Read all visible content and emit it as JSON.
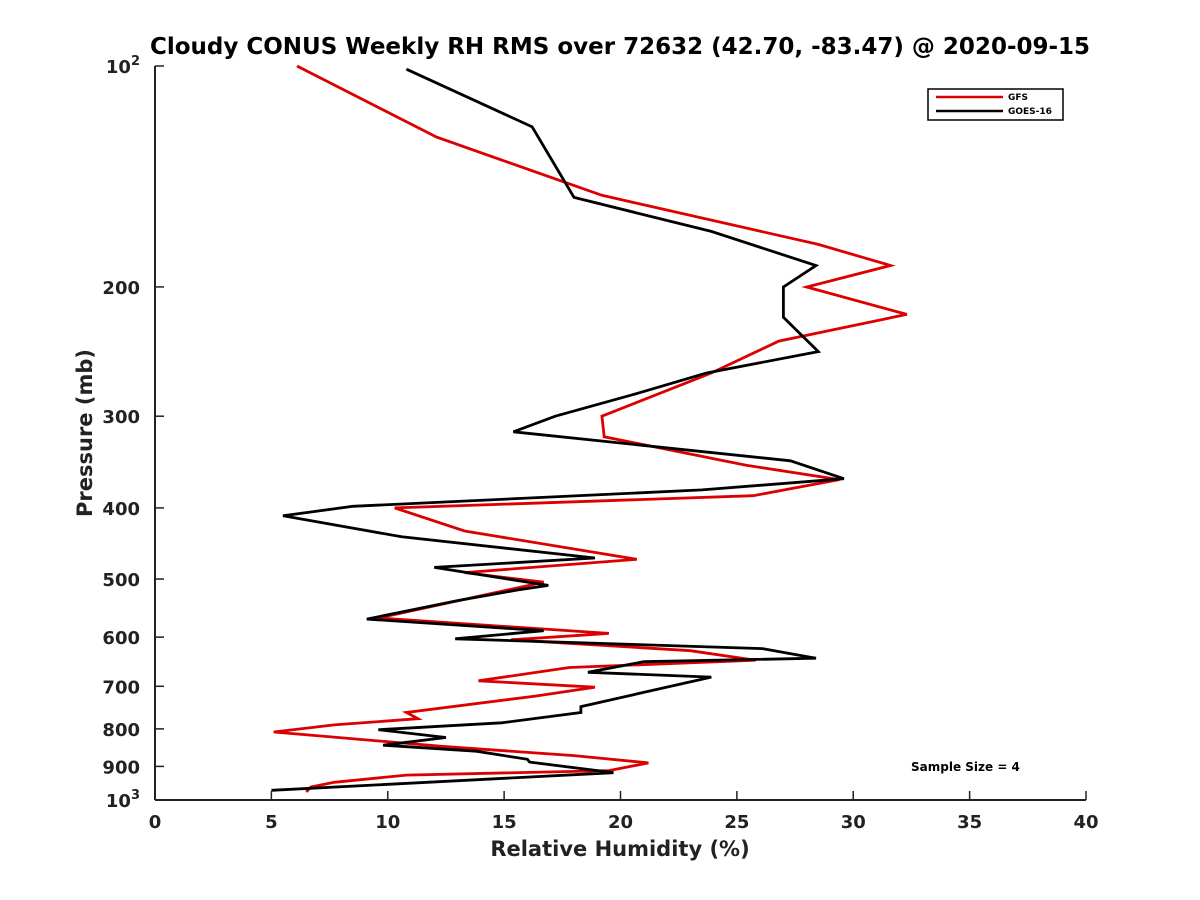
{
  "chart_data": {
    "type": "line",
    "title": "Cloudy CONUS Weekly RH RMS over 72632 (42.70, -83.47) @ 2020-09-15",
    "xlabel": "Relative Humidity (%)",
    "ylabel": "Pressure (mb)",
    "xlim": [
      0,
      40
    ],
    "ylim": [
      100,
      1000
    ],
    "y_scale": "log",
    "y_reversed": true,
    "x_ticks": [
      0,
      5,
      10,
      15,
      20,
      25,
      30,
      35,
      40
    ],
    "y_ticks": [
      {
        "value": 100,
        "base": "10",
        "exp": "2"
      },
      {
        "value": 200,
        "label": "200"
      },
      {
        "value": 300,
        "label": "300"
      },
      {
        "value": 400,
        "label": "400"
      },
      {
        "value": 500,
        "label": "500"
      },
      {
        "value": 600,
        "label": "600"
      },
      {
        "value": 700,
        "label": "700"
      },
      {
        "value": 800,
        "label": "800"
      },
      {
        "value": 900,
        "label": "900"
      },
      {
        "value": 1000,
        "base": "10",
        "exp": "3"
      }
    ],
    "grid": false,
    "legend_position": "top-right",
    "annotation": "Sample Size = 4",
    "series": [
      {
        "name": "GFS",
        "color": "#dd0000",
        "points": [
          [
            6.1,
            100
          ],
          [
            12.1,
            125
          ],
          [
            19.2,
            150
          ],
          [
            28.5,
            175
          ],
          [
            31.6,
            187
          ],
          [
            28.0,
            200
          ],
          [
            32.3,
            218
          ],
          [
            26.8,
            237
          ],
          [
            23.9,
            262
          ],
          [
            19.2,
            300
          ],
          [
            19.3,
            320
          ],
          [
            25.4,
            350
          ],
          [
            29.4,
            366
          ],
          [
            25.7,
            385
          ],
          [
            10.3,
            400
          ],
          [
            13.3,
            430
          ],
          [
            20.7,
            470
          ],
          [
            13.3,
            490
          ],
          [
            16.7,
            505
          ],
          [
            9.6,
            565
          ],
          [
            19.5,
            593
          ],
          [
            15.3,
            605
          ],
          [
            23.0,
            626
          ],
          [
            25.8,
            645
          ],
          [
            17.8,
            660
          ],
          [
            13.9,
            688
          ],
          [
            18.9,
            702
          ],
          [
            16.3,
            722
          ],
          [
            10.8,
            760
          ],
          [
            11.3,
            775
          ],
          [
            7.7,
            790
          ],
          [
            5.1,
            808
          ],
          [
            12.3,
            845
          ],
          [
            18.0,
            870
          ],
          [
            21.2,
            890
          ],
          [
            19.5,
            912
          ],
          [
            10.8,
            925
          ],
          [
            7.7,
            946
          ],
          [
            6.7,
            960
          ],
          [
            6.5,
            975
          ]
        ]
      },
      {
        "name": "GOES-16",
        "color": "#000000",
        "points": [
          [
            10.8,
            101
          ],
          [
            16.2,
            121
          ],
          [
            18.0,
            151
          ],
          [
            23.9,
            168
          ],
          [
            28.4,
            187
          ],
          [
            27.0,
            200
          ],
          [
            27.0,
            220
          ],
          [
            28.5,
            245
          ],
          [
            23.7,
            262
          ],
          [
            20.6,
            280
          ],
          [
            17.2,
            300
          ],
          [
            15.4,
            315
          ],
          [
            27.3,
            345
          ],
          [
            29.6,
            365
          ],
          [
            23.5,
            378
          ],
          [
            8.5,
            398
          ],
          [
            5.5,
            410
          ],
          [
            10.6,
            438
          ],
          [
            18.9,
            468
          ],
          [
            12.0,
            482
          ],
          [
            16.9,
            510
          ],
          [
            15.5,
            518
          ],
          [
            13.0,
            535
          ],
          [
            9.1,
            567
          ],
          [
            16.7,
            588
          ],
          [
            12.9,
            603
          ],
          [
            26.1,
            622
          ],
          [
            28.4,
            641
          ],
          [
            21.0,
            648
          ],
          [
            18.6,
            670
          ],
          [
            23.9,
            680
          ],
          [
            18.3,
            746
          ],
          [
            18.3,
            760
          ],
          [
            14.9,
            785
          ],
          [
            9.6,
            802
          ],
          [
            12.5,
            822
          ],
          [
            9.8,
            842
          ],
          [
            13.8,
            858
          ],
          [
            16.0,
            880
          ],
          [
            16.1,
            888
          ],
          [
            19.7,
            918
          ],
          [
            5.0,
            970
          ]
        ]
      }
    ]
  }
}
